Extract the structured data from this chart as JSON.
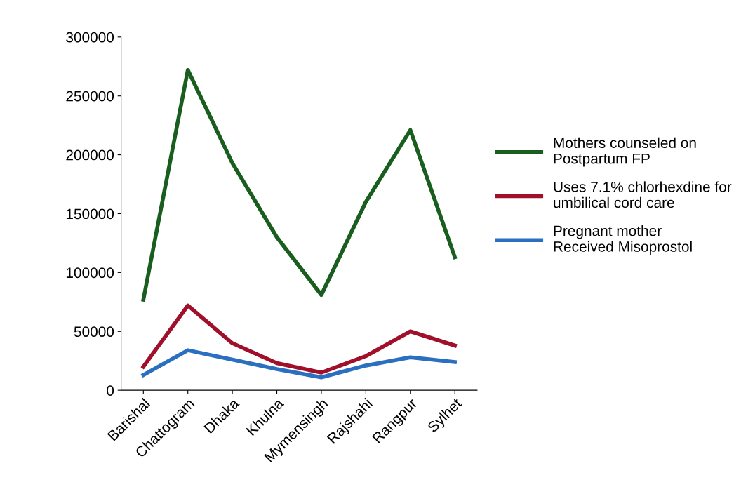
{
  "chart_data": {
    "type": "line",
    "categories": [
      "Barishal",
      "Chattogram",
      "Dhaka",
      "Khulna",
      "Mymensingh",
      "Rajshahi",
      "Rangpur",
      "Sylhet"
    ],
    "series": [
      {
        "name": "Mothers counseled on Postpartum FP",
        "color": "#1a5e1f",
        "values": [
          77000,
          272000,
          193000,
          130000,
          81000,
          160000,
          221000,
          113000
        ]
      },
      {
        "name": "Uses 7.1% chlorhexdine for umbilical cord care",
        "color": "#a0102a",
        "values": [
          20000,
          72000,
          40000,
          23000,
          15000,
          29000,
          50000,
          38000
        ]
      },
      {
        "name": "Pregnant mother Received Misoprostol",
        "color": "#2a6fc0",
        "values": [
          13000,
          34000,
          26000,
          18000,
          11000,
          21000,
          28000,
          24000
        ]
      }
    ],
    "ylim": [
      0,
      300000
    ],
    "yticks": [
      0,
      50000,
      100000,
      150000,
      200000,
      250000,
      300000
    ],
    "grid": false,
    "legend": "right",
    "marker": "none",
    "line_style": "solid"
  }
}
